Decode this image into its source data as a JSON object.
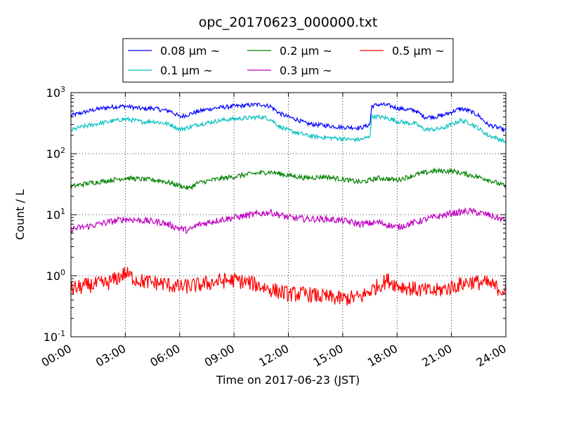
{
  "chart_data": {
    "type": "line",
    "title": "opc_20170623_000000.txt",
    "xlabel": "Time on 2017-06-23 (JST)",
    "ylabel": "Count / L",
    "x_unit": "hours (JST)",
    "xlim": [
      0,
      24
    ],
    "ylim": [
      0.1,
      1000
    ],
    "yscale": "log",
    "grid": true,
    "legend_position": "top, above plot",
    "x_ticks": [
      0,
      3,
      6,
      9,
      12,
      15,
      18,
      21,
      24
    ],
    "x_tick_labels": [
      "00:00",
      "03:00",
      "06:00",
      "09:00",
      "12:00",
      "15:00",
      "18:00",
      "21:00",
      "24:00"
    ],
    "y_ticks": [
      0.1,
      1,
      10,
      100,
      1000
    ],
    "y_tick_labels": [
      {
        "base": "10",
        "exp": "-1"
      },
      {
        "base": "10",
        "exp": "0"
      },
      {
        "base": "10",
        "exp": "1"
      },
      {
        "base": "10",
        "exp": "2"
      },
      {
        "base": "10",
        "exp": "3"
      }
    ],
    "series": [
      {
        "name": "0.08 μm ~",
        "label_size": "0.08",
        "color": "#0000ff",
        "x": [
          0,
          0.5,
          1,
          1.5,
          2,
          2.5,
          3,
          3.5,
          4,
          4.5,
          5,
          5.5,
          6,
          6.5,
          7,
          7.5,
          8,
          8.5,
          9,
          9.5,
          10,
          10.5,
          11,
          11.5,
          12,
          12.5,
          13,
          13.5,
          14,
          14.5,
          15,
          15.5,
          16,
          16.5,
          16.6,
          17,
          17.5,
          18,
          18.5,
          19,
          19.5,
          20,
          20.5,
          21,
          21.5,
          22,
          22.5,
          23,
          23.5,
          24
        ],
        "y": [
          420,
          460,
          500,
          540,
          570,
          590,
          600,
          570,
          540,
          560,
          520,
          500,
          400,
          440,
          490,
          530,
          560,
          580,
          600,
          610,
          630,
          640,
          600,
          460,
          400,
          360,
          310,
          300,
          290,
          280,
          270,
          270,
          265,
          300,
          600,
          640,
          620,
          560,
          530,
          510,
          400,
          400,
          420,
          480,
          550,
          500,
          420,
          300,
          270,
          240
        ]
      },
      {
        "name": "0.1 μm ~",
        "label_size": "0.1",
        "color": "#00bfbf",
        "x": [
          0,
          0.5,
          1,
          1.5,
          2,
          2.5,
          3,
          3.5,
          4,
          4.5,
          5,
          5.5,
          6,
          6.5,
          7,
          7.5,
          8,
          8.5,
          9,
          9.5,
          10,
          10.5,
          11,
          11.5,
          12,
          12.5,
          13,
          13.5,
          14,
          14.5,
          15,
          15.5,
          16,
          16.5,
          16.6,
          17,
          17.5,
          18,
          18.5,
          19,
          19.5,
          20,
          20.5,
          21,
          21.5,
          22,
          22.5,
          23,
          23.5,
          24
        ],
        "y": [
          240,
          270,
          290,
          310,
          330,
          350,
          370,
          350,
          330,
          340,
          320,
          300,
          250,
          270,
          300,
          320,
          340,
          360,
          370,
          380,
          390,
          400,
          370,
          280,
          240,
          220,
          200,
          190,
          185,
          180,
          175,
          170,
          170,
          190,
          410,
          400,
          380,
          340,
          320,
          310,
          250,
          250,
          260,
          300,
          350,
          320,
          260,
          200,
          180,
          155
        ]
      },
      {
        "name": "0.2 μm ~",
        "label_size": "0.2",
        "color": "#008000",
        "x": [
          0,
          1,
          2,
          3,
          4,
          5,
          6,
          6.5,
          7,
          8,
          9,
          10,
          11,
          12,
          13,
          14,
          15,
          16,
          17,
          18,
          19,
          20,
          21,
          22,
          23,
          24
        ],
        "y": [
          29,
          33,
          36,
          40,
          38,
          36,
          30,
          27,
          33,
          38,
          42,
          47,
          50,
          44,
          40,
          42,
          38,
          34,
          40,
          37,
          45,
          52,
          52,
          45,
          38,
          29
        ]
      },
      {
        "name": "0.3 μm ~",
        "label_size": "0.3",
        "color": "#bf00bf",
        "x": [
          0,
          1,
          2,
          3,
          4,
          5,
          6,
          6.5,
          7,
          8,
          9,
          10,
          11,
          12,
          13,
          14,
          15,
          16,
          17,
          18,
          19,
          20,
          21,
          22,
          23,
          24
        ],
        "y": [
          5.8,
          6.5,
          7.5,
          8.5,
          8,
          7.5,
          6,
          5.5,
          6.8,
          8,
          9,
          10,
          11,
          9,
          8.5,
          8.5,
          8,
          7,
          7.5,
          6.2,
          7.5,
          9,
          10.5,
          11.5,
          10,
          8
        ]
      },
      {
        "name": "0.5 μm ~",
        "label_size": "0.5",
        "color": "#ff0000",
        "x": [
          0,
          1,
          2,
          2.5,
          3,
          3.5,
          4,
          5,
          6,
          7,
          8,
          9,
          10,
          11,
          12,
          13,
          14,
          15,
          16,
          17,
          17.5,
          18,
          19,
          20,
          21,
          22,
          23,
          24
        ],
        "y": [
          0.6,
          0.7,
          0.75,
          0.9,
          1.1,
          0.9,
          0.8,
          0.75,
          0.65,
          0.7,
          0.8,
          0.85,
          0.75,
          0.6,
          0.5,
          0.5,
          0.45,
          0.42,
          0.45,
          0.7,
          0.85,
          0.7,
          0.6,
          0.55,
          0.65,
          0.8,
          0.75,
          0.55
        ]
      }
    ]
  }
}
